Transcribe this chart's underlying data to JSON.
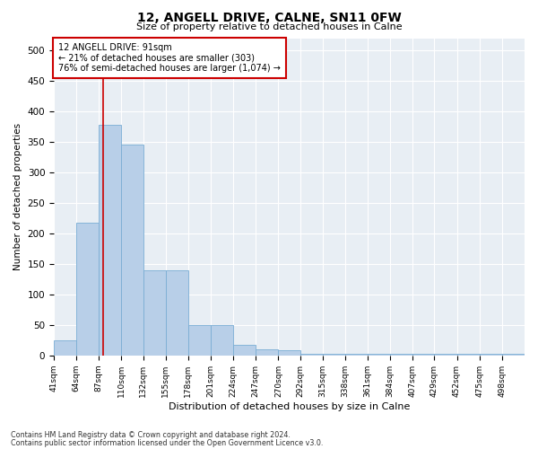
{
  "title": "12, ANGELL DRIVE, CALNE, SN11 0FW",
  "subtitle": "Size of property relative to detached houses in Calne",
  "xlabel": "Distribution of detached houses by size in Calne",
  "ylabel": "Number of detached properties",
  "footnote1": "Contains HM Land Registry data © Crown copyright and database right 2024.",
  "footnote2": "Contains public sector information licensed under the Open Government Licence v3.0.",
  "annotation_title": "12 ANGELL DRIVE: 91sqm",
  "annotation_line1": "← 21% of detached houses are smaller (303)",
  "annotation_line2": "76% of semi-detached houses are larger (1,074) →",
  "property_size": 91,
  "bar_color": "#b8cfe8",
  "bar_edge_color": "#7aadd4",
  "marker_color": "#cc0000",
  "plot_bg_color": "#e8eef4",
  "bins": [
    41,
    64,
    87,
    110,
    132,
    155,
    178,
    201,
    224,
    247,
    270,
    292,
    315,
    338,
    361,
    384,
    407,
    429,
    452,
    475,
    498
  ],
  "bar_heights": [
    25,
    218,
    378,
    345,
    140,
    140,
    50,
    50,
    18,
    10,
    8,
    2,
    2,
    2,
    2,
    2,
    2,
    2,
    2,
    2,
    2
  ],
  "ylim": [
    0,
    520
  ],
  "yticks": [
    0,
    50,
    100,
    150,
    200,
    250,
    300,
    350,
    400,
    450,
    500
  ]
}
